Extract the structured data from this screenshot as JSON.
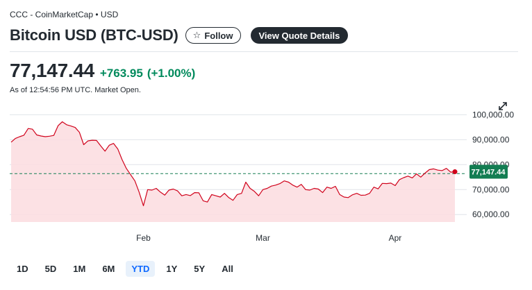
{
  "header": {
    "source": "CCC - CoinMarketCap • USD",
    "title": "Bitcoin USD (BTC-USD)",
    "follow_label": "Follow",
    "quote_details_label": "View Quote Details"
  },
  "quote": {
    "price": "77,147.44",
    "change": "+763.95",
    "change_pct": "(+1.00%)",
    "as_of": "As of 12:54:56 PM UTC. Market Open."
  },
  "ranges": [
    "1D",
    "5D",
    "1M",
    "6M",
    "YTD",
    "1Y",
    "5Y",
    "All"
  ],
  "active_range": "YTD",
  "colors": {
    "up": "#008a5c",
    "line": "#d0021b",
    "fill": "#fbdcdf",
    "baseline": "#137d52"
  },
  "icons": {
    "follow": "star-icon",
    "expand": "expand-icon"
  },
  "chart_data": {
    "type": "area",
    "y_ticks": [
      "100,000.00",
      "90,000.00",
      "80,000.00",
      "70,000.00",
      "60,000.00"
    ],
    "y_tick_values": [
      100000,
      90000,
      80000,
      70000,
      60000
    ],
    "ylim": [
      57000,
      101500
    ],
    "x_labels": [
      {
        "label": "Feb",
        "index": 31
      },
      {
        "label": "Mar",
        "index": 59
      },
      {
        "label": "Apr",
        "index": 90
      }
    ],
    "current_price_label": "77,147.44",
    "baseline_value": 76383.49,
    "grid": true,
    "series": [
      {
        "values": [
          89000,
          90500,
          91200,
          91800,
          94500,
          94200,
          91900,
          91500,
          91200,
          91400,
          91700,
          95600,
          97200,
          96000,
          95500,
          94900,
          93000,
          88000,
          89500,
          89800,
          89700,
          87500,
          85400,
          87800,
          88500,
          86300,
          82000,
          78500,
          76000,
          73500,
          69000,
          63500,
          70000,
          69800,
          70500,
          69000,
          67800,
          69800,
          70200,
          69500,
          67500,
          68000,
          67600,
          68800,
          68700,
          65500,
          65000,
          68000,
          67500,
          67000,
          68500,
          66800,
          65700,
          68000,
          68500,
          73000,
          70500,
          69300,
          67500,
          70000,
          70500,
          71400,
          71800,
          72400,
          73500,
          73000,
          71800,
          71000,
          72100,
          70000,
          69800,
          70500,
          70200,
          68800,
          71000,
          70500,
          71300,
          68000,
          67000,
          66800,
          67900,
          68500,
          67700,
          67800,
          68500,
          71000,
          70300,
          72500,
          72400,
          72600,
          71600,
          74000,
          74800,
          75400,
          74700,
          76300,
          75000,
          76600,
          78000,
          78300,
          77800,
          77600,
          78500,
          77000,
          77147
        ]
      }
    ]
  }
}
